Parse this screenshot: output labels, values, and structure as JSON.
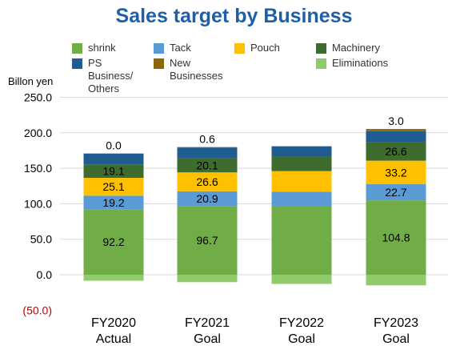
{
  "chart_data": {
    "type": "bar",
    "stacked": true,
    "title": "Sales target by Business",
    "ylabel": "Billon yen",
    "ylim": [
      -50,
      250
    ],
    "yticks": [
      {
        "value": 250,
        "label": "250.0"
      },
      {
        "value": 200,
        "label": "200.0"
      },
      {
        "value": 150,
        "label": "150.0"
      },
      {
        "value": 100,
        "label": "100.0"
      },
      {
        "value": 50,
        "label": "50.0"
      },
      {
        "value": 0,
        "label": "0.0"
      },
      {
        "value": -50,
        "label": "(50.0)"
      }
    ],
    "negative_tick_color": "#c00000",
    "grid": true,
    "categories": [
      {
        "line1": "FY2020",
        "line2": "Actual"
      },
      {
        "line1": "FY2021",
        "line2": "Goal"
      },
      {
        "line1": "FY2022",
        "line2": "Goal"
      },
      {
        "line1": "FY2023",
        "line2": "Goal"
      }
    ],
    "series": [
      {
        "name": "shrink",
        "color": "#70ad47",
        "values": [
          92.2,
          96.7,
          96.0,
          104.8
        ],
        "labels": [
          "92.2",
          "96.7",
          "",
          "104.8"
        ]
      },
      {
        "name": "Tack",
        "color": "#5b9bd5",
        "values": [
          19.2,
          20.9,
          21.0,
          22.7
        ],
        "labels": [
          "19.2",
          "20.9",
          "",
          "22.7"
        ]
      },
      {
        "name": "Pouch",
        "color": "#ffc000",
        "values": [
          25.1,
          26.6,
          29.0,
          33.2
        ],
        "labels": [
          "25.1",
          "26.6",
          "",
          "33.2"
        ]
      },
      {
        "name": "Machinery",
        "color": "#3e6b2e",
        "values": [
          19.1,
          20.1,
          20.0,
          26.6
        ],
        "labels": [
          "19.1",
          "20.1",
          "",
          "26.6"
        ]
      },
      {
        "name": "PS Business/\nOthers",
        "color": "#1f5c8f",
        "values": [
          15.2,
          15.0,
          15.0,
          15.0
        ],
        "labels": [
          "15.2",
          "15.0",
          "",
          "15.0"
        ]
      },
      {
        "name": "New Businesses",
        "color": "#8b6508",
        "values": [
          0.0,
          0.6,
          0.0,
          3.0
        ],
        "labels": [
          "0.0",
          "0.6",
          "",
          "3.0"
        ]
      },
      {
        "name": "Eliminations",
        "color": "#8fcb6b",
        "values": [
          -8.5,
          -10.5,
          -13.0,
          -15.0
        ],
        "labels": [
          "",
          "",
          "",
          ""
        ]
      }
    ]
  }
}
